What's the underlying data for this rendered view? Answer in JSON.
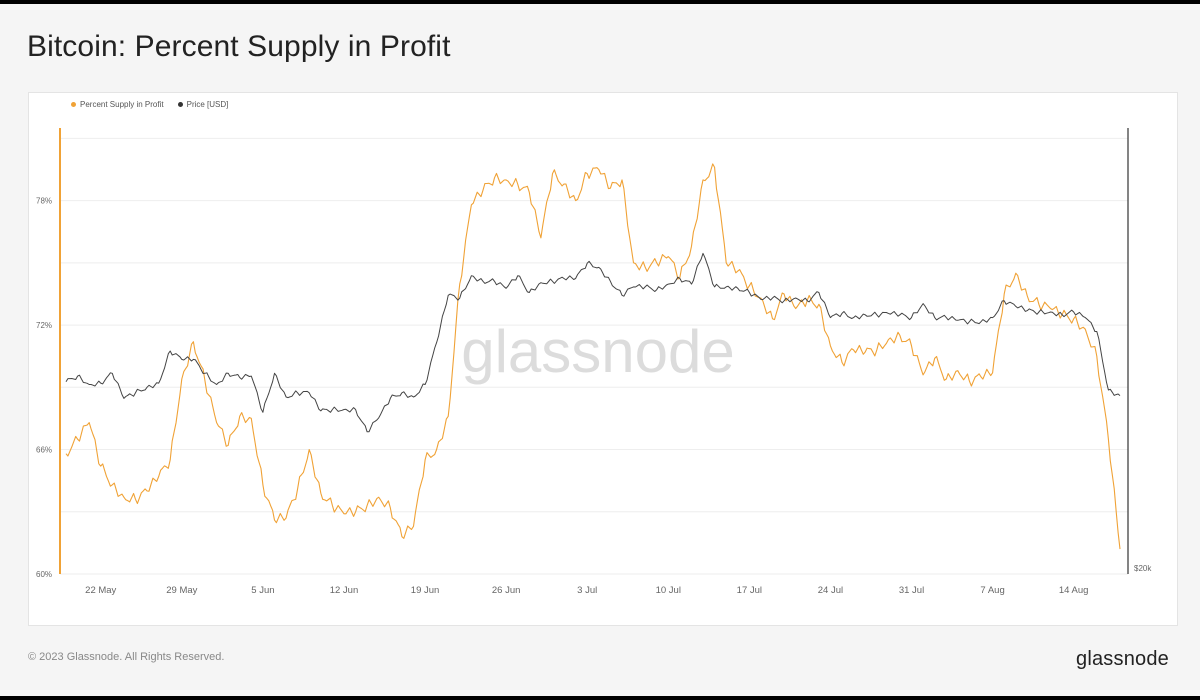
{
  "page": {
    "title": "Bitcoin: Percent Supply in Profit",
    "copyright": "© 2023 Glassnode. All Rights Reserved.",
    "brand": "glassnode",
    "watermark": "glassnode"
  },
  "colors": {
    "supply_series": "#f0a236",
    "price_series": "#444444",
    "grid": "#eeeeee",
    "axis_text": "#666666",
    "watermark": "#dcdcdc"
  },
  "chart_data": {
    "type": "line",
    "title": "Bitcoin: Percent Supply in Profit",
    "legend": [
      "Percent Supply in Profit",
      "Price [USD]"
    ],
    "legend_position": "top-left",
    "grid": true,
    "x_tick_labels": [
      "22 May",
      "29 May",
      "5 Jun",
      "12 Jun",
      "19 Jun",
      "26 Jun",
      "3 Jul",
      "10 Jul",
      "17 Jul",
      "24 Jul",
      "31 Jul",
      "7 Aug",
      "14 Aug"
    ],
    "x_range": [
      "2023-05-19",
      "2023-08-18"
    ],
    "y_left": {
      "label": "",
      "ticks": [
        "60%",
        "66%",
        "72%",
        "78%"
      ],
      "range": [
        60,
        81.5
      ]
    },
    "y_right": {
      "label": "",
      "ticks": [
        "$20k"
      ]
    },
    "series": [
      {
        "name": "Percent Supply in Profit",
        "axis": "left",
        "color": "#f0a236",
        "points": [
          [
            "2023-05-19",
            65.8
          ],
          [
            "2023-05-20",
            66.5
          ],
          [
            "2023-05-21",
            67.3
          ],
          [
            "2023-05-22",
            65.2
          ],
          [
            "2023-05-23",
            64.3
          ],
          [
            "2023-05-24",
            63.7
          ],
          [
            "2023-05-25",
            63.6
          ],
          [
            "2023-05-26",
            64.0
          ],
          [
            "2023-05-27",
            64.7
          ],
          [
            "2023-05-28",
            65.5
          ],
          [
            "2023-05-29",
            69.4
          ],
          [
            "2023-05-30",
            71.2
          ],
          [
            "2023-05-31",
            69.3
          ],
          [
            "2023-06-01",
            67.3
          ],
          [
            "2023-06-02",
            66.2
          ],
          [
            "2023-06-03",
            67.6
          ],
          [
            "2023-06-04",
            67.5
          ],
          [
            "2023-06-05",
            64.3
          ],
          [
            "2023-06-06",
            62.6
          ],
          [
            "2023-06-07",
            62.7
          ],
          [
            "2023-06-08",
            64.1
          ],
          [
            "2023-06-09",
            66.0
          ],
          [
            "2023-06-10",
            63.9
          ],
          [
            "2023-06-11",
            63.3
          ],
          [
            "2023-06-12",
            62.9
          ],
          [
            "2023-06-13",
            63.0
          ],
          [
            "2023-06-14",
            63.3
          ],
          [
            "2023-06-15",
            63.7
          ],
          [
            "2023-06-16",
            63.2
          ],
          [
            "2023-06-17",
            61.8
          ],
          [
            "2023-06-18",
            62.3
          ],
          [
            "2023-06-19",
            65.5
          ],
          [
            "2023-06-20",
            66.0
          ],
          [
            "2023-06-21",
            67.6
          ],
          [
            "2023-06-22",
            74.0
          ],
          [
            "2023-06-23",
            77.8
          ],
          [
            "2023-06-24",
            78.5
          ],
          [
            "2023-06-25",
            79.1
          ],
          [
            "2023-06-26",
            79.0
          ],
          [
            "2023-06-27",
            78.8
          ],
          [
            "2023-06-28",
            78.4
          ],
          [
            "2023-06-29",
            76.2
          ],
          [
            "2023-06-30",
            79.3
          ],
          [
            "2023-07-01",
            78.8
          ],
          [
            "2023-07-02",
            78.0
          ],
          [
            "2023-07-03",
            79.3
          ],
          [
            "2023-07-04",
            79.5
          ],
          [
            "2023-07-05",
            78.6
          ],
          [
            "2023-07-06",
            79.0
          ],
          [
            "2023-07-07",
            75.0
          ],
          [
            "2023-07-08",
            74.8
          ],
          [
            "2023-07-09",
            75.0
          ],
          [
            "2023-07-10",
            75.3
          ],
          [
            "2023-07-11",
            74.3
          ],
          [
            "2023-07-12",
            75.8
          ],
          [
            "2023-07-13",
            79.0
          ],
          [
            "2023-07-14",
            79.6
          ],
          [
            "2023-07-15",
            75.0
          ],
          [
            "2023-07-16",
            74.6
          ],
          [
            "2023-07-17",
            73.9
          ],
          [
            "2023-07-18",
            73.3
          ],
          [
            "2023-07-19",
            72.3
          ],
          [
            "2023-07-20",
            73.5
          ],
          [
            "2023-07-21",
            72.8
          ],
          [
            "2023-07-22",
            73.2
          ],
          [
            "2023-07-23",
            73.0
          ],
          [
            "2023-07-24",
            71.0
          ],
          [
            "2023-07-25",
            70.2
          ],
          [
            "2023-07-26",
            70.8
          ],
          [
            "2023-07-27",
            70.7
          ],
          [
            "2023-07-28",
            70.8
          ],
          [
            "2023-07-29",
            71.3
          ],
          [
            "2023-07-30",
            71.5
          ],
          [
            "2023-07-31",
            71.0
          ],
          [
            "2023-08-01",
            69.6
          ],
          [
            "2023-08-02",
            70.4
          ],
          [
            "2023-08-03",
            69.4
          ],
          [
            "2023-08-04",
            69.8
          ],
          [
            "2023-08-05",
            69.3
          ],
          [
            "2023-08-06",
            69.5
          ],
          [
            "2023-08-07",
            69.7
          ],
          [
            "2023-08-08",
            73.5
          ],
          [
            "2023-08-09",
            74.5
          ],
          [
            "2023-08-10",
            73.4
          ],
          [
            "2023-08-11",
            73.0
          ],
          [
            "2023-08-12",
            72.8
          ],
          [
            "2023-08-13",
            72.5
          ],
          [
            "2023-08-14",
            72.3
          ],
          [
            "2023-08-15",
            71.8
          ],
          [
            "2023-08-16",
            70.5
          ],
          [
            "2023-08-17",
            66.5
          ],
          [
            "2023-08-18",
            61.2
          ]
        ]
      },
      {
        "name": "Price [USD]",
        "axis": "right",
        "color": "#444444",
        "points": [
          [
            "2023-05-19",
            26900
          ],
          [
            "2023-05-20",
            27100
          ],
          [
            "2023-05-21",
            26800
          ],
          [
            "2023-05-22",
            26850
          ],
          [
            "2023-05-23",
            27200
          ],
          [
            "2023-05-24",
            26300
          ],
          [
            "2023-05-25",
            26500
          ],
          [
            "2023-05-26",
            26700
          ],
          [
            "2023-05-27",
            26850
          ],
          [
            "2023-05-28",
            28000
          ],
          [
            "2023-05-29",
            27700
          ],
          [
            "2023-05-30",
            27700
          ],
          [
            "2023-05-31",
            27200
          ],
          [
            "2023-06-01",
            26800
          ],
          [
            "2023-06-02",
            27200
          ],
          [
            "2023-06-03",
            27050
          ],
          [
            "2023-06-04",
            27100
          ],
          [
            "2023-06-05",
            25800
          ],
          [
            "2023-06-06",
            27200
          ],
          [
            "2023-06-07",
            26350
          ],
          [
            "2023-06-08",
            26500
          ],
          [
            "2023-06-09",
            26500
          ],
          [
            "2023-06-10",
            25850
          ],
          [
            "2023-06-11",
            25900
          ],
          [
            "2023-06-12",
            25900
          ],
          [
            "2023-06-13",
            25900
          ],
          [
            "2023-06-14",
            25100
          ],
          [
            "2023-06-15",
            25600
          ],
          [
            "2023-06-16",
            26300
          ],
          [
            "2023-06-17",
            26500
          ],
          [
            "2023-06-18",
            26350
          ],
          [
            "2023-06-19",
            26800
          ],
          [
            "2023-06-20",
            28300
          ],
          [
            "2023-06-21",
            30000
          ],
          [
            "2023-06-22",
            29900
          ],
          [
            "2023-06-23",
            30700
          ],
          [
            "2023-06-24",
            30500
          ],
          [
            "2023-06-25",
            30500
          ],
          [
            "2023-06-26",
            30250
          ],
          [
            "2023-06-27",
            30700
          ],
          [
            "2023-06-28",
            30100
          ],
          [
            "2023-06-29",
            30450
          ],
          [
            "2023-06-30",
            30500
          ],
          [
            "2023-07-01",
            30600
          ],
          [
            "2023-07-02",
            30600
          ],
          [
            "2023-07-03",
            31150
          ],
          [
            "2023-07-04",
            31000
          ],
          [
            "2023-07-05",
            30500
          ],
          [
            "2023-07-06",
            30000
          ],
          [
            "2023-07-07",
            30300
          ],
          [
            "2023-07-08",
            30300
          ],
          [
            "2023-07-09",
            30200
          ],
          [
            "2023-07-10",
            30400
          ],
          [
            "2023-07-11",
            30600
          ],
          [
            "2023-07-12",
            30400
          ],
          [
            "2023-07-13",
            31500
          ],
          [
            "2023-07-14",
            30300
          ],
          [
            "2023-07-15",
            30300
          ],
          [
            "2023-07-16",
            30250
          ],
          [
            "2023-07-17",
            30100
          ],
          [
            "2023-07-18",
            29850
          ],
          [
            "2023-07-19",
            29900
          ],
          [
            "2023-07-20",
            29800
          ],
          [
            "2023-07-21",
            29900
          ],
          [
            "2023-07-22",
            29800
          ],
          [
            "2023-07-23",
            30100
          ],
          [
            "2023-07-24",
            29200
          ],
          [
            "2023-07-25",
            29350
          ],
          [
            "2023-07-26",
            29200
          ],
          [
            "2023-07-27",
            29300
          ],
          [
            "2023-07-28",
            29300
          ],
          [
            "2023-07-29",
            29350
          ],
          [
            "2023-07-30",
            29300
          ],
          [
            "2023-07-31",
            29200
          ],
          [
            "2023-08-01",
            29700
          ],
          [
            "2023-08-02",
            29200
          ],
          [
            "2023-08-03",
            29200
          ],
          [
            "2023-08-04",
            29100
          ],
          [
            "2023-08-05",
            29050
          ],
          [
            "2023-08-06",
            29050
          ],
          [
            "2023-08-07",
            29200
          ],
          [
            "2023-08-08",
            29800
          ],
          [
            "2023-08-09",
            29600
          ],
          [
            "2023-08-10",
            29450
          ],
          [
            "2023-08-11",
            29400
          ],
          [
            "2023-08-12",
            29400
          ],
          [
            "2023-08-13",
            29300
          ],
          [
            "2023-08-14",
            29400
          ],
          [
            "2023-08-15",
            29200
          ],
          [
            "2023-08-16",
            28700
          ],
          [
            "2023-08-17",
            26600
          ],
          [
            "2023-08-18",
            26400
          ]
        ]
      }
    ]
  }
}
